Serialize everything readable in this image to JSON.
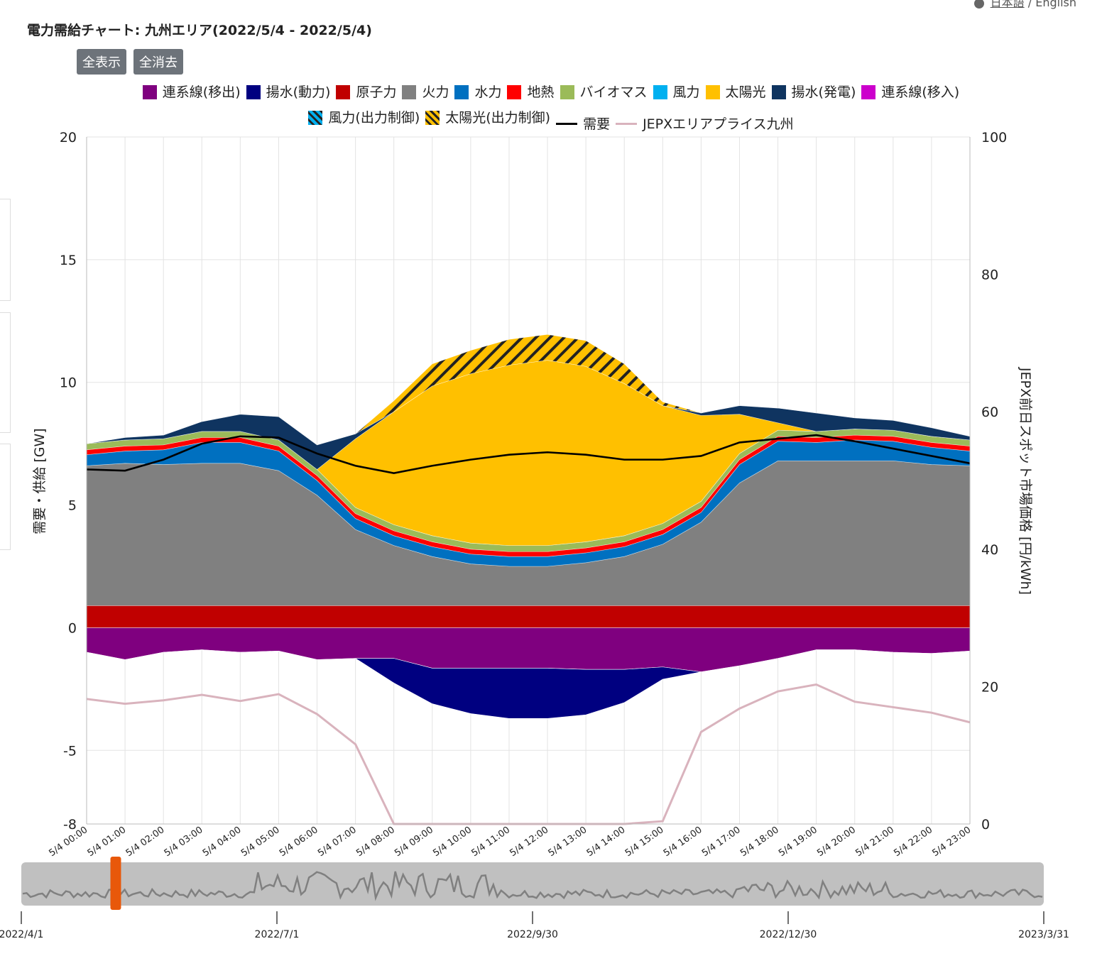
{
  "header": {
    "title": "電力需給チャート: 九州エリア(2022/5/4 - 2022/5/4)",
    "lang_selected": "日本語",
    "lang_sep": "/",
    "lang_other": "English"
  },
  "buttons": {
    "show_all": "全表示",
    "clear_all": "全消去"
  },
  "legend": {
    "row1": [
      {
        "label": "連系線(移出)",
        "color": "#7f007f"
      },
      {
        "label": "揚水(動力)",
        "color": "#000080"
      },
      {
        "label": "原子力",
        "color": "#c00000"
      },
      {
        "label": "火力",
        "color": "#808080"
      },
      {
        "label": "水力",
        "color": "#0070c0"
      },
      {
        "label": "地熱",
        "color": "#ff0000"
      },
      {
        "label": "バイオマス",
        "color": "#9bbb59"
      },
      {
        "label": "風力",
        "color": "#00b0f0"
      },
      {
        "label": "太陽光",
        "color": "#ffc000"
      },
      {
        "label": "揚水(発電)",
        "color": "#0f3460"
      },
      {
        "label": "連系線(移入)",
        "color": "#cc00cc"
      }
    ],
    "row2": [
      {
        "label": "風力(出力制御)",
        "color": "#00b0f0",
        "hatch": true
      },
      {
        "label": "太陽光(出力制御)",
        "color": "#ffc000",
        "hatch": true
      },
      {
        "label": "需要",
        "color": "#000000",
        "line": true
      },
      {
        "label": "JEPXエリアプライス九州",
        "color": "#d9b3bd",
        "line": true
      }
    ]
  },
  "chart_data": {
    "type": "area",
    "x": [
      "5/4 00:00",
      "5/4 01:00",
      "5/4 02:00",
      "5/4 03:00",
      "5/4 04:00",
      "5/4 05:00",
      "5/4 06:00",
      "5/4 07:00",
      "5/4 08:00",
      "5/4 09:00",
      "5/4 10:00",
      "5/4 11:00",
      "5/4 12:00",
      "5/4 13:00",
      "5/4 14:00",
      "5/4 15:00",
      "5/4 16:00",
      "5/4 17:00",
      "5/4 18:00",
      "5/4 19:00",
      "5/4 20:00",
      "5/4 21:00",
      "5/4 22:00",
      "5/4 23:00"
    ],
    "ylabel_left": "需要・供給 [GW]",
    "ylabel_right": "JEPX前日スポット市場価格 [円/kWh]",
    "ylim_left": [
      -8,
      20
    ],
    "ylim_right": [
      0,
      100
    ],
    "yticks_left": [
      "20",
      "15",
      "10",
      "5",
      "0",
      "-5",
      "-8"
    ],
    "yticks_right": [
      "100",
      "80",
      "60",
      "40",
      "20",
      "0"
    ],
    "grid": true,
    "negative_series": [
      {
        "name": "連系線(移出)",
        "color": "#7f007f",
        "values": [
          -1.0,
          -1.3,
          -1.0,
          -0.9,
          -1.0,
          -0.95,
          -1.3,
          -1.25,
          -1.25,
          -1.65,
          -1.65,
          -1.65,
          -1.65,
          -1.7,
          -1.7,
          -1.6,
          -1.8,
          -1.55,
          -1.25,
          -0.9,
          -0.9,
          -1.0,
          -1.05,
          -0.95
        ]
      },
      {
        "name": "揚水(動力)",
        "color": "#000080",
        "values": [
          0,
          0,
          0,
          0,
          0,
          0,
          0,
          0,
          -1.0,
          -1.45,
          -1.85,
          -2.05,
          -2.05,
          -1.85,
          -1.35,
          -0.5,
          0,
          0,
          0,
          0,
          0,
          0,
          0,
          0
        ]
      }
    ],
    "positive_series": [
      {
        "name": "原子力",
        "color": "#c00000",
        "values": [
          0.9,
          0.9,
          0.9,
          0.9,
          0.9,
          0.9,
          0.9,
          0.9,
          0.9,
          0.9,
          0.9,
          0.9,
          0.9,
          0.9,
          0.9,
          0.9,
          0.9,
          0.9,
          0.9,
          0.9,
          0.9,
          0.9,
          0.9,
          0.9
        ]
      },
      {
        "name": "火力",
        "color": "#808080",
        "values": [
          5.7,
          5.8,
          5.75,
          5.8,
          5.8,
          5.5,
          4.5,
          3.1,
          2.45,
          2.0,
          1.7,
          1.6,
          1.6,
          1.75,
          2.0,
          2.5,
          3.4,
          5.0,
          5.9,
          5.9,
          5.9,
          5.9,
          5.75,
          5.7
        ]
      },
      {
        "name": "水力",
        "color": "#0070c0",
        "values": [
          0.45,
          0.5,
          0.6,
          0.85,
          0.85,
          0.8,
          0.6,
          0.45,
          0.4,
          0.4,
          0.4,
          0.4,
          0.4,
          0.4,
          0.4,
          0.4,
          0.4,
          0.75,
          0.8,
          0.75,
          0.85,
          0.8,
          0.7,
          0.6
        ]
      },
      {
        "name": "地熱",
        "color": "#ff0000",
        "values": [
          0.2,
          0.2,
          0.2,
          0.2,
          0.2,
          0.2,
          0.2,
          0.2,
          0.2,
          0.2,
          0.2,
          0.2,
          0.2,
          0.2,
          0.2,
          0.2,
          0.2,
          0.2,
          0.2,
          0.2,
          0.2,
          0.2,
          0.2,
          0.2
        ]
      },
      {
        "name": "バイオマス",
        "color": "#9bbb59",
        "values": [
          0.25,
          0.25,
          0.25,
          0.25,
          0.25,
          0.25,
          0.25,
          0.25,
          0.25,
          0.25,
          0.25,
          0.25,
          0.25,
          0.25,
          0.25,
          0.25,
          0.25,
          0.25,
          0.25,
          0.25,
          0.25,
          0.25,
          0.25,
          0.25
        ]
      },
      {
        "name": "風力",
        "color": "#00b0f0",
        "values": [
          0,
          0,
          0,
          0,
          0,
          0,
          0,
          0,
          0,
          0,
          0,
          0,
          0,
          0,
          0,
          0,
          0,
          0,
          0,
          0,
          0,
          0,
          0,
          0
        ]
      },
      {
        "name": "太陽光",
        "color": "#ffc000",
        "values": [
          0,
          0,
          0,
          0,
          0,
          0,
          0,
          2.8,
          4.6,
          6.1,
          6.9,
          7.35,
          7.55,
          7.15,
          6.2,
          4.8,
          3.5,
          1.6,
          0.3,
          0,
          0,
          0,
          0,
          0
        ]
      },
      {
        "name": "揚水(発電)",
        "color": "#0f3460",
        "values": [
          0.0,
          0.1,
          0.15,
          0.4,
          0.7,
          0.95,
          1.0,
          0.2,
          0,
          0,
          0,
          0,
          0,
          0,
          0,
          0,
          0.1,
          0.35,
          0.6,
          0.75,
          0.45,
          0.4,
          0.35,
          0.15
        ]
      },
      {
        "name": "太陽光(出力制御)",
        "color": "#ffc000",
        "hatch": true,
        "values": [
          0,
          0,
          0,
          0,
          0,
          0,
          0,
          0,
          0.45,
          0.9,
          0.95,
          1.05,
          1.05,
          1.05,
          0.8,
          0.15,
          0,
          0,
          0,
          0,
          0,
          0,
          0,
          0
        ]
      }
    ],
    "demand": {
      "name": "需要",
      "color": "#000000",
      "values": [
        6.45,
        6.4,
        6.85,
        7.5,
        7.8,
        7.75,
        7.1,
        6.6,
        6.3,
        6.6,
        6.85,
        7.05,
        7.15,
        7.05,
        6.85,
        6.85,
        7.0,
        7.55,
        7.7,
        7.85,
        7.6,
        7.3,
        7.0,
        6.7
      ]
    },
    "price": {
      "name": "JEPXエリアプライス九州",
      "color": "#d9b3bd",
      "values": [
        18.2,
        17.5,
        18.0,
        18.8,
        17.9,
        18.9,
        16.0,
        11.6,
        0.0,
        0.0,
        0.0,
        0.0,
        0.0,
        0.0,
        0.0,
        0.4,
        13.4,
        16.8,
        19.3,
        20.3,
        17.8,
        17.0,
        16.2,
        14.8
      ]
    }
  },
  "navigator": {
    "labels": [
      "2022/4/1",
      "2022/7/1",
      "2022/9/30",
      "2022/12/30",
      "2023/3/31"
    ],
    "handle_position": 0.092
  }
}
